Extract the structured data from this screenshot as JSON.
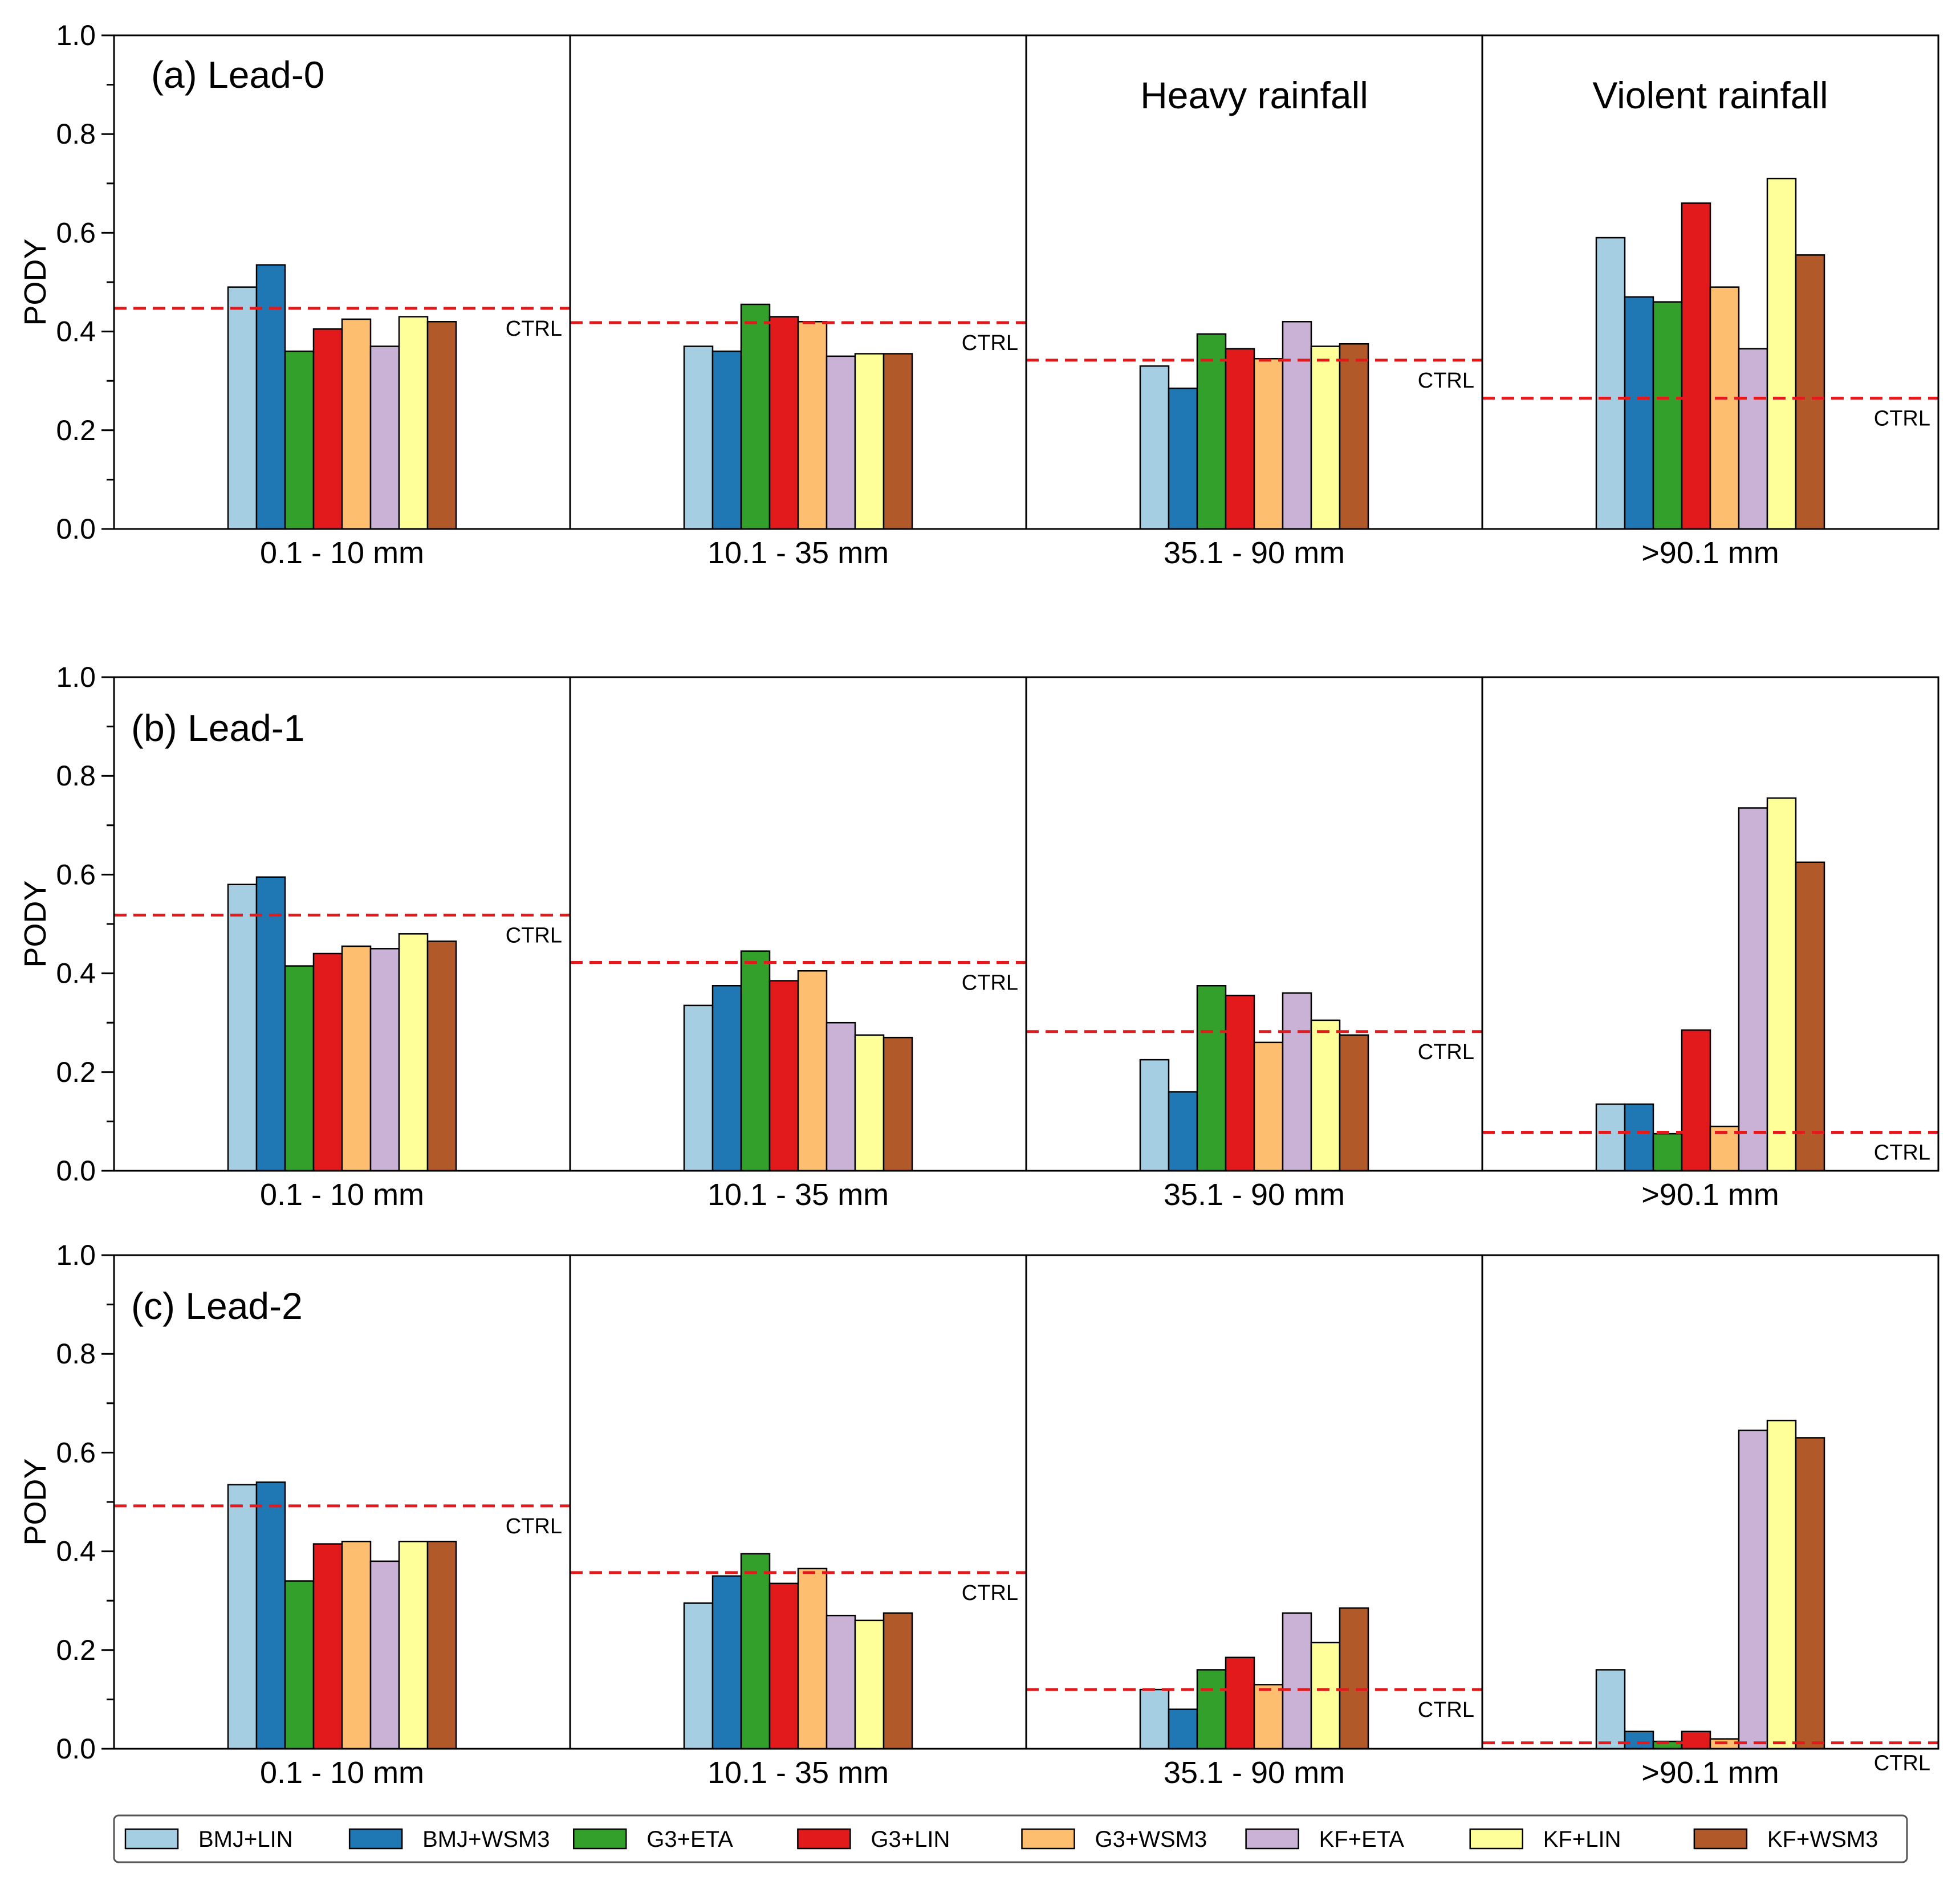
{
  "colors": {
    "BMJ+LIN": "#a6cee3",
    "BMJ+WSM3": "#1f78b4",
    "G3+ETA": "#33a02c",
    "G3+LIN": "#e31a1c",
    "G3+WSM3": "#fdbf6f",
    "KF+ETA": "#cab2d6",
    "KF+LIN": "#ffff99",
    "KF+WSM3": "#b15928",
    "ctrl_line": "#e31a1c"
  },
  "chart_data": [
    {
      "type": "bar",
      "title": "(a) Lead-0",
      "ylabel": "PODY",
      "ylim": [
        0,
        1.0
      ],
      "yticks": [
        "0.0",
        "0.2",
        "0.4",
        "0.6",
        "0.8",
        "1.0"
      ],
      "categories": [
        "0.1 - 10 mm",
        "10.1 - 35 mm",
        "35.1 - 90 mm",
        ">90.1 mm"
      ],
      "panel_titles": [
        "",
        "",
        "Heavy rainfall",
        "Violent rainfall"
      ],
      "ctrl_label": "CTRL",
      "ctrl": [
        0.447,
        0.418,
        0.342,
        0.265
      ],
      "series": [
        {
          "name": "BMJ+LIN",
          "values": [
            0.49,
            0.37,
            0.33,
            0.59
          ]
        },
        {
          "name": "BMJ+WSM3",
          "values": [
            0.535,
            0.36,
            0.285,
            0.47
          ]
        },
        {
          "name": "G3+ETA",
          "values": [
            0.36,
            0.455,
            0.395,
            0.46
          ]
        },
        {
          "name": "G3+LIN",
          "values": [
            0.405,
            0.43,
            0.365,
            0.66
          ]
        },
        {
          "name": "G3+WSM3",
          "values": [
            0.425,
            0.42,
            0.345,
            0.49
          ]
        },
        {
          "name": "KF+ETA",
          "values": [
            0.37,
            0.35,
            0.42,
            0.365
          ]
        },
        {
          "name": "KF+LIN",
          "values": [
            0.43,
            0.355,
            0.37,
            0.71
          ]
        },
        {
          "name": "KF+WSM3",
          "values": [
            0.42,
            0.355,
            0.375,
            0.555
          ]
        }
      ]
    },
    {
      "type": "bar",
      "title": "(b) Lead-1",
      "ylabel": "PODY",
      "ylim": [
        0,
        1.0
      ],
      "yticks": [
        "0.0",
        "0.2",
        "0.4",
        "0.6",
        "0.8",
        "1.0"
      ],
      "categories": [
        "0.1 - 10 mm",
        "10.1 - 35 mm",
        "35.1 - 90 mm",
        ">90.1 mm"
      ],
      "panel_titles": [
        "",
        "",
        "",
        ""
      ],
      "ctrl_label": "CTRL",
      "ctrl": [
        0.518,
        0.422,
        0.282,
        0.078
      ],
      "series": [
        {
          "name": "BMJ+LIN",
          "values": [
            0.58,
            0.335,
            0.225,
            0.135
          ]
        },
        {
          "name": "BMJ+WSM3",
          "values": [
            0.595,
            0.375,
            0.16,
            0.135
          ]
        },
        {
          "name": "G3+ETA",
          "values": [
            0.415,
            0.445,
            0.375,
            0.075
          ]
        },
        {
          "name": "G3+LIN",
          "values": [
            0.44,
            0.385,
            0.355,
            0.285
          ]
        },
        {
          "name": "G3+WSM3",
          "values": [
            0.455,
            0.405,
            0.26,
            0.09
          ]
        },
        {
          "name": "KF+ETA",
          "values": [
            0.45,
            0.3,
            0.36,
            0.735
          ]
        },
        {
          "name": "KF+LIN",
          "values": [
            0.48,
            0.275,
            0.305,
            0.755
          ]
        },
        {
          "name": "KF+WSM3",
          "values": [
            0.465,
            0.27,
            0.275,
            0.625
          ]
        }
      ]
    },
    {
      "type": "bar",
      "title": "(c) Lead-2",
      "ylabel": "PODY",
      "ylim": [
        0,
        1.0
      ],
      "yticks": [
        "0.0",
        "0.2",
        "0.4",
        "0.6",
        "0.8",
        "1.0"
      ],
      "categories": [
        "0.1 - 10 mm",
        "10.1 - 35 mm",
        "35.1 - 90 mm",
        ">90.1 mm"
      ],
      "panel_titles": [
        "",
        "",
        "",
        ""
      ],
      "ctrl_label": "CTRL",
      "ctrl": [
        0.492,
        0.357,
        0.12,
        0.012
      ],
      "series": [
        {
          "name": "BMJ+LIN",
          "values": [
            0.535,
            0.295,
            0.12,
            0.16
          ]
        },
        {
          "name": "BMJ+WSM3",
          "values": [
            0.54,
            0.35,
            0.08,
            0.035
          ]
        },
        {
          "name": "G3+ETA",
          "values": [
            0.34,
            0.395,
            0.16,
            0.015
          ]
        },
        {
          "name": "G3+LIN",
          "values": [
            0.415,
            0.335,
            0.185,
            0.035
          ]
        },
        {
          "name": "G3+WSM3",
          "values": [
            0.42,
            0.365,
            0.13,
            0.02
          ]
        },
        {
          "name": "KF+ETA",
          "values": [
            0.38,
            0.27,
            0.275,
            0.645
          ]
        },
        {
          "name": "KF+LIN",
          "values": [
            0.42,
            0.26,
            0.215,
            0.665
          ]
        },
        {
          "name": "KF+WSM3",
          "values": [
            0.42,
            0.275,
            0.285,
            0.63
          ]
        }
      ]
    }
  ],
  "legend": [
    "BMJ+LIN",
    "BMJ+WSM3",
    "G3+ETA",
    "G3+LIN",
    "G3+WSM3",
    "KF+ETA",
    "KF+LIN",
    "KF+WSM3"
  ]
}
